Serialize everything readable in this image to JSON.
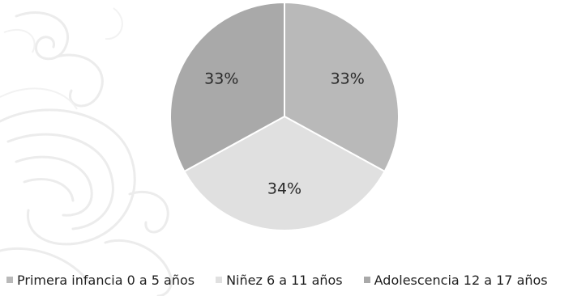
{
  "chart_data": {
    "type": "pie",
    "categories": [
      "Primera infancia 0 a 5 años",
      "Niñez 6 a 11 años",
      "Adolescencia 12 a 17 años"
    ],
    "values": [
      33,
      34,
      33
    ],
    "data_labels": [
      "33%",
      "34%",
      "33%"
    ],
    "colors": [
      "#b9b9b9",
      "#e0e0e0",
      "#a9a9a9"
    ],
    "legend_position": "bottom",
    "title": ""
  },
  "decoration": {
    "watermark": "baroque-scroll-ornament"
  }
}
